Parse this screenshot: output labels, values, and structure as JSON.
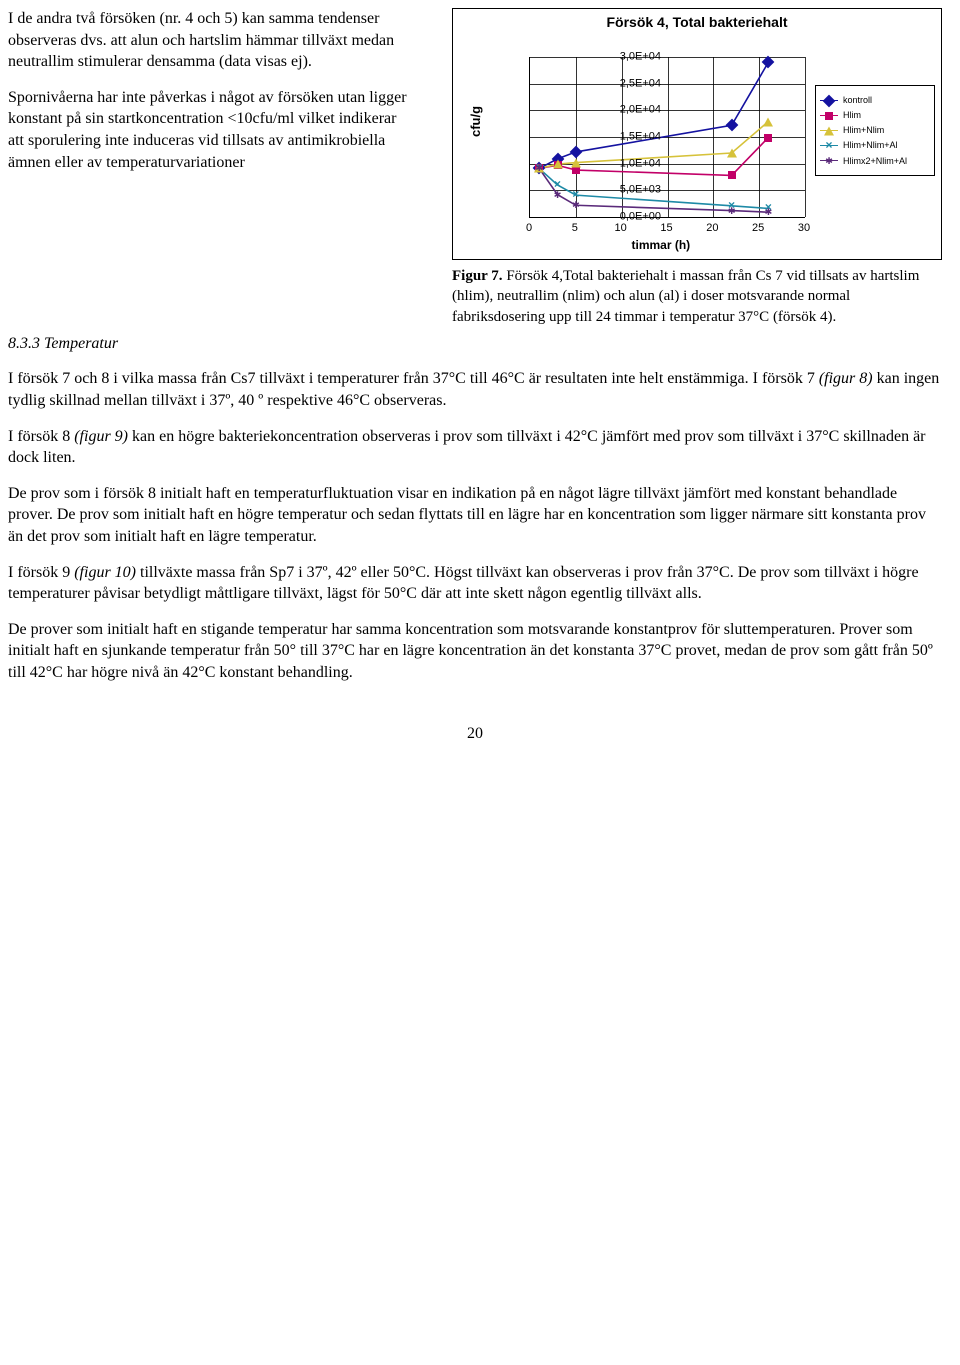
{
  "left": {
    "p1": "I de andra två försöken (nr. 4 och 5) kan samma tendenser observeras dvs. att alun och hartslim hämmar tillväxt medan neutrallim stimulerar densamma (data visas ej).",
    "p2": "Spornivåerna har inte påverkas i något av försöken utan ligger konstant på sin startkoncentration <10cfu/ml vilket indikerar att sporulering inte induceras vid tillsats av antimikrobiella ämnen eller av temperaturvariationer"
  },
  "chart": {
    "title": "Försök 4, Total bakteriehalt",
    "ylabel": "cfu/g",
    "xlabel": "timmar (h)",
    "x_ticks": [
      0,
      5,
      10,
      15,
      20,
      25,
      30
    ],
    "y_ticks": [
      "0,0E+00",
      "5,0E+03",
      "1,0E+04",
      "1,5E+04",
      "2,0E+04",
      "2,5E+04",
      "3,0E+04"
    ],
    "xlim": [
      0,
      30
    ],
    "ylim": [
      0,
      30000
    ],
    "legend": [
      {
        "label": "kontroll",
        "color": "#1412a0",
        "marker": "diamond"
      },
      {
        "label": "Hlim",
        "color": "#c20068",
        "marker": "square"
      },
      {
        "label": "Hlim+Nlim",
        "color": "#d6c23a",
        "marker": "triangle"
      },
      {
        "label": "Hlim+Nlim+Al",
        "color": "#1e8aa6",
        "marker": "x"
      },
      {
        "label": "Hlimx2+Nlim+Al",
        "color": "#5a2a7a",
        "marker": "star"
      }
    ],
    "series": {
      "kontroll": {
        "color": "#1412a0",
        "marker": "diamond",
        "points": [
          [
            1,
            9100
          ],
          [
            3,
            10900
          ],
          [
            5,
            12200
          ],
          [
            22,
            17200
          ],
          [
            26,
            29000
          ]
        ]
      },
      "Hlim": {
        "color": "#c20068",
        "marker": "square",
        "points": [
          [
            1,
            9100
          ],
          [
            3,
            9700
          ],
          [
            5,
            8800
          ],
          [
            22,
            7800
          ],
          [
            26,
            14900
          ]
        ]
      },
      "Hlim+Nlim": {
        "color": "#d6c23a",
        "marker": "triangle",
        "points": [
          [
            1,
            9100
          ],
          [
            3,
            9900
          ],
          [
            5,
            10200
          ],
          [
            22,
            12000
          ],
          [
            26,
            17900
          ]
        ]
      },
      "Hlim+Nlim+Al": {
        "color": "#1e8aa6",
        "marker": "x",
        "points": [
          [
            1,
            9100
          ],
          [
            3,
            6000
          ],
          [
            5,
            4100
          ],
          [
            22,
            2100
          ],
          [
            26,
            1600
          ]
        ]
      },
      "Hlimx2+Nlim+Al": {
        "color": "#5a2a7a",
        "marker": "star",
        "points": [
          [
            1,
            9100
          ],
          [
            3,
            4200
          ],
          [
            5,
            2200
          ],
          [
            22,
            1200
          ],
          [
            26,
            900
          ]
        ]
      }
    }
  },
  "caption": {
    "lead": "Figur 7.",
    "body": " Försök 4,Total bakteriehalt i massan från Cs 7 vid tillsats av hartslim (hlim), neutrallim (nlim) och alun (al) i doser motsvarande normal fabriksdosering upp till 24 timmar i temperatur 37°C (försök 4)."
  },
  "section": "8.3.3 Temperatur",
  "body": {
    "p1a": "I försök 7 och 8 i vilka massa från Cs7 tillväxt i temperaturer från 37°C till 46°C är resultaten inte helt enstämmiga. I försök 7 ",
    "p1b_italic": "(figur 8)",
    "p1c": " kan ingen tydlig skillnad mellan tillväxt i 37º, 40 º respektive 46°C observeras.",
    "p2a": "I försök 8 ",
    "p2b_italic": "(figur 9)",
    "p2c": " kan en högre bakteriekoncentration observeras i prov som tillväxt i 42°C jämfört med prov som tillväxt i 37°C skillnaden är dock liten.",
    "p3": "De prov som i försök 8 initialt haft en temperaturfluktuation visar en indikation på en något lägre tillväxt jämfört med konstant behandlade prover. De prov som initialt haft en högre temperatur och sedan flyttats till en lägre har en koncentration som ligger närmare sitt konstanta prov än det prov som initialt haft en lägre temperatur.",
    "p4a": "I försök 9 ",
    "p4b_italic": "(figur 10)",
    "p4c": " tillväxte massa från Sp7 i 37º, 42º eller 50°C. Högst tillväxt kan observeras i prov från 37°C. De prov som tillväxt i högre temperaturer påvisar betydligt måttligare tillväxt, lägst för 50°C där att inte skett någon egentlig tillväxt alls.",
    "p5": "De prover som initialt haft en stigande temperatur har samma koncentration som motsvarande konstantprov för sluttemperaturen. Prover som initialt haft en sjunkande temperatur från 50° till 37°C har en lägre koncentration än det konstanta 37°C provet, medan de prov som gått från 50º till 42°C har högre nivå än 42°C konstant behandling."
  },
  "page": "20"
}
